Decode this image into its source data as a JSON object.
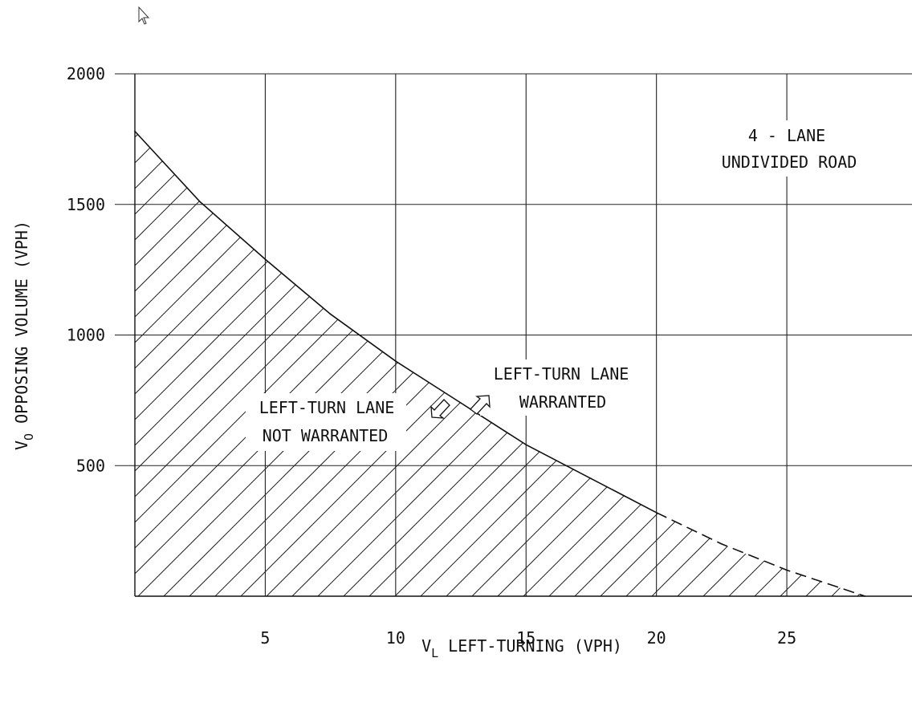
{
  "chart_data": {
    "type": "line",
    "title": "",
    "x": [
      0,
      2.5,
      5,
      7.5,
      10,
      12.5,
      15,
      17.5,
      20,
      22.5,
      25,
      28
    ],
    "series": [
      {
        "name": "",
        "values": [
          1780,
          1510,
          1290,
          1080,
          900,
          740,
          580,
          450,
          320,
          200,
          100,
          0
        ],
        "solid_until_x": 20
      }
    ],
    "xlabel_main": "V",
    "xlabel_sub": "L",
    "xlabel_rest": " LEFT-TURNING (VPH)",
    "ylabel_main": "V",
    "ylabel_sub": "O",
    "ylabel_rest": " OPPOSING VOLUME (VPH)",
    "xlim": [
      0,
      29.8
    ],
    "ylim": [
      0,
      2000
    ],
    "x_ticks": [
      5,
      10,
      15,
      20,
      25
    ],
    "y_ticks": [
      500,
      1000,
      1500,
      2000
    ],
    "grid": true,
    "shaded_region": "below-curve",
    "annotations": {
      "road_type_line1": "4 - LANE",
      "road_type_line2": "UNDIVIDED ROAD",
      "not_warranted_line1": "LEFT-TURN LANE",
      "not_warranted_line2": "NOT WARRANTED",
      "warranted_line1": "LEFT-TURN LANE",
      "warranted_line2": "WARRANTED"
    }
  }
}
